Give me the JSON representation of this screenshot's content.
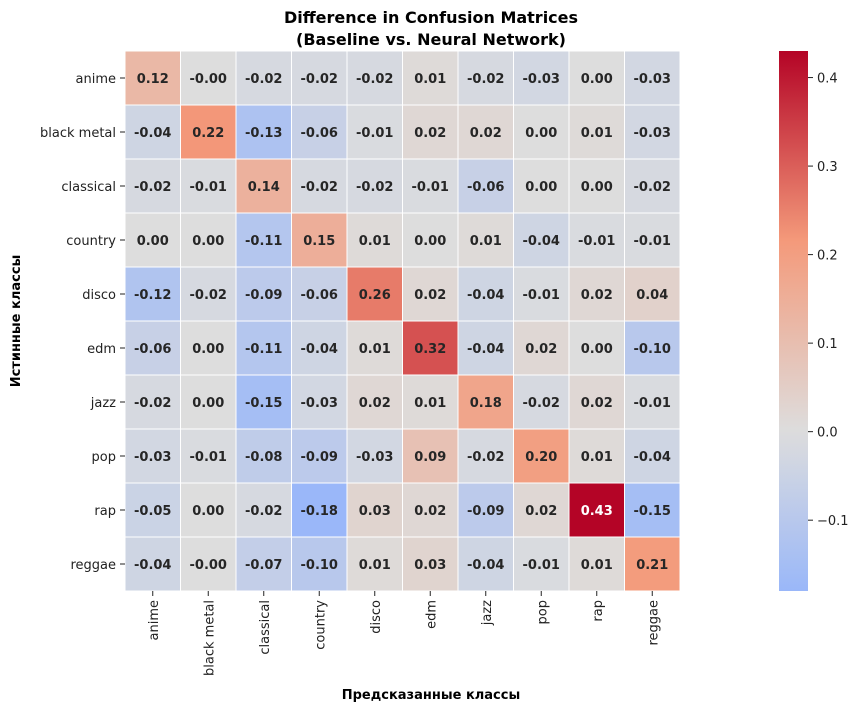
{
  "chart_data": {
    "type": "heatmap",
    "title_line1": "Difference in Confusion Matrices",
    "title_line2": "(Baseline vs. Neural Network)",
    "xlabel": "Предсказанные классы",
    "ylabel": "Истинные классы",
    "rows": [
      "anime",
      "black metal",
      "classical",
      "country",
      "disco",
      "edm",
      "jazz",
      "pop",
      "rap",
      "reggae"
    ],
    "cols": [
      "anime",
      "black metal",
      "classical",
      "country",
      "disco",
      "edm",
      "jazz",
      "pop",
      "rap",
      "reggae"
    ],
    "labels": [
      [
        "0.12",
        "-0.00",
        "-0.02",
        "-0.02",
        "-0.02",
        "0.01",
        "-0.02",
        "-0.03",
        "0.00",
        "-0.03"
      ],
      [
        "-0.04",
        "0.22",
        "-0.13",
        "-0.06",
        "-0.01",
        "0.02",
        "0.02",
        "0.00",
        "0.01",
        "-0.03"
      ],
      [
        "-0.02",
        "-0.01",
        "0.14",
        "-0.02",
        "-0.02",
        "-0.01",
        "-0.06",
        "0.00",
        "0.00",
        "-0.02"
      ],
      [
        "0.00",
        "0.00",
        "-0.11",
        "0.15",
        "0.01",
        "0.00",
        "0.01",
        "-0.04",
        "-0.01",
        "-0.01"
      ],
      [
        "-0.12",
        "-0.02",
        "-0.09",
        "-0.06",
        "0.26",
        "0.02",
        "-0.04",
        "-0.01",
        "0.02",
        "0.04"
      ],
      [
        "-0.06",
        "0.00",
        "-0.11",
        "-0.04",
        "0.01",
        "0.32",
        "-0.04",
        "0.02",
        "0.00",
        "-0.10"
      ],
      [
        "-0.02",
        "0.00",
        "-0.15",
        "-0.03",
        "0.02",
        "0.01",
        "0.18",
        "-0.02",
        "0.02",
        "-0.01"
      ],
      [
        "-0.03",
        "-0.01",
        "-0.08",
        "-0.09",
        "-0.03",
        "0.09",
        "-0.02",
        "0.20",
        "0.01",
        "-0.04"
      ],
      [
        "-0.05",
        "0.00",
        "-0.02",
        "-0.18",
        "0.03",
        "0.02",
        "-0.09",
        "0.02",
        "0.43",
        "-0.15"
      ],
      [
        "-0.04",
        "-0.00",
        "-0.07",
        "-0.10",
        "0.01",
        "0.03",
        "-0.04",
        "-0.01",
        "0.01",
        "0.21"
      ]
    ],
    "colormap": "coolwarm",
    "center": 0.0,
    "vmin": -0.18,
    "vmax": 0.43,
    "colorbar_ticks": [
      "−0.1",
      "0.0",
      "0.1",
      "0.2",
      "0.3",
      "0.4"
    ],
    "colorbar_tick_values": [
      -0.1,
      0.0,
      0.1,
      0.2,
      0.3,
      0.4
    ],
    "grid_lines": "white",
    "legend": "colorbar-right"
  }
}
